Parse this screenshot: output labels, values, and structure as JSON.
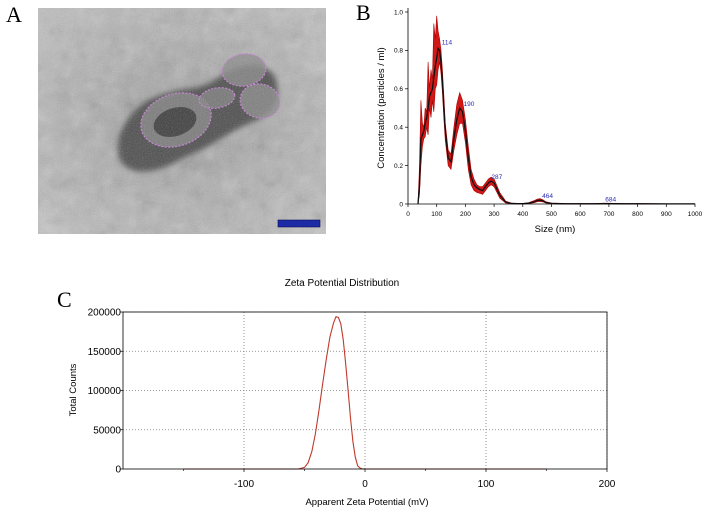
{
  "panels": {
    "a": {
      "label": "A"
    },
    "b": {
      "label": "B"
    },
    "c": {
      "label": "C"
    }
  },
  "chart_data": [
    {
      "type": "line",
      "panel": "B",
      "title": "",
      "xlabel": "Size (nm)",
      "ylabel": "Concentration (particles / ml)",
      "xlim": [
        0,
        1000
      ],
      "ylim": [
        0,
        1.0
      ],
      "x_ticks": [
        0,
        100,
        200,
        300,
        400,
        500,
        600,
        700,
        800,
        900,
        1000
      ],
      "y_ticks": [
        0,
        0.2,
        0.4,
        0.6,
        0.8,
        1.0
      ],
      "y_tick_labels": [
        "0",
        "0.2",
        "0.4",
        "0.6",
        "0.8",
        "1.0"
      ],
      "series": [
        {
          "x": [
            35,
            40,
            45,
            50,
            55,
            60,
            65,
            70,
            75,
            80,
            85,
            90,
            95,
            100,
            105,
            110,
            115,
            120,
            125,
            130,
            140,
            150,
            160,
            170,
            180,
            190,
            200,
            210,
            220,
            230,
            240,
            250,
            260,
            270,
            280,
            290,
            300,
            320,
            340,
            360,
            380,
            400,
            420,
            440,
            450,
            460,
            470,
            480,
            500,
            550,
            600,
            650,
            680,
            700,
            750,
            800,
            900,
            1000
          ],
          "y": [
            0,
            0.1,
            0.34,
            0.36,
            0.38,
            0.42,
            0.45,
            0.5,
            0.56,
            0.58,
            0.6,
            0.66,
            0.72,
            0.76,
            0.81,
            0.8,
            0.74,
            0.64,
            0.5,
            0.38,
            0.24,
            0.22,
            0.34,
            0.44,
            0.5,
            0.48,
            0.38,
            0.24,
            0.14,
            0.1,
            0.085,
            0.075,
            0.07,
            0.09,
            0.11,
            0.12,
            0.11,
            0.045,
            0.01,
            0.003,
            0.002,
            0.002,
            0.004,
            0.012,
            0.018,
            0.02,
            0.016,
            0.008,
            0.003,
            0.001,
            0.001,
            0.001,
            0.002,
            0.002,
            0.001,
            0.001,
            0.0005,
            0.0005
          ]
        }
      ],
      "band_upper": [
        0,
        0.2,
        0.54,
        0.42,
        0.4,
        0.5,
        0.48,
        0.74,
        0.6,
        0.7,
        0.65,
        0.94,
        0.86,
        0.98,
        0.9,
        0.86,
        0.8,
        0.7,
        0.56,
        0.42,
        0.28,
        0.26,
        0.4,
        0.52,
        0.58,
        0.54,
        0.44,
        0.3,
        0.18,
        0.13,
        0.1,
        0.09,
        0.09,
        0.11,
        0.13,
        0.14,
        0.13,
        0.06,
        0.015,
        0.005,
        0.003,
        0.003,
        0.007,
        0.018,
        0.025,
        0.028,
        0.022,
        0.012,
        0.005,
        0.002,
        0.002,
        0.002,
        0.004,
        0.004,
        0.002,
        0.002,
        0.001,
        0.001
      ],
      "band_lower": [
        0,
        0.05,
        0.2,
        0.3,
        0.34,
        0.35,
        0.4,
        0.36,
        0.5,
        0.45,
        0.54,
        0.48,
        0.6,
        0.62,
        0.7,
        0.74,
        0.68,
        0.58,
        0.44,
        0.33,
        0.2,
        0.18,
        0.28,
        0.36,
        0.42,
        0.42,
        0.32,
        0.18,
        0.1,
        0.07,
        0.06,
        0.055,
        0.05,
        0.07,
        0.09,
        0.1,
        0.09,
        0.03,
        0.005,
        0.001,
        0.001,
        0.001,
        0.002,
        0.007,
        0.012,
        0.013,
        0.011,
        0.005,
        0.001,
        0,
        0,
        0,
        0.001,
        0.001,
        0,
        0,
        0,
        0
      ],
      "peak_labels": [
        {
          "x": 114,
          "y": 0.82,
          "text": "114"
        },
        {
          "x": 190,
          "y": 0.5,
          "text": "190"
        },
        {
          "x": 287,
          "y": 0.12,
          "text": "287"
        },
        {
          "x": 464,
          "y": 0.02,
          "text": "464"
        },
        {
          "x": 684,
          "y": 0.002,
          "text": "684"
        }
      ],
      "grid": false,
      "colors": {
        "line": "#111111",
        "band": "#d01818",
        "band_edge": "#b00000",
        "label": "#2a2ab8"
      }
    },
    {
      "type": "line",
      "panel": "C",
      "title": "Zeta Potential Distribution",
      "xlabel": "Apparent Zeta Potential (mV)",
      "ylabel": "Total Counts",
      "xlim": [
        -200,
        200
      ],
      "ylim": [
        0,
        200000
      ],
      "x_ticks": [
        -100,
        0,
        100,
        200
      ],
      "y_ticks": [
        0,
        50000,
        100000,
        150000,
        200000
      ],
      "series": [
        {
          "x": [
            -150,
            -55,
            -50,
            -47,
            -44,
            -41,
            -38,
            -35,
            -32,
            -29,
            -26,
            -24,
            -22,
            -20,
            -18,
            -16,
            -14,
            -12,
            -10,
            -8,
            -6,
            -4,
            -2,
            150
          ],
          "y": [
            0,
            0,
            2000,
            8000,
            22000,
            45000,
            75000,
            108000,
            140000,
            168000,
            186000,
            194000,
            193000,
            185000,
            165000,
            135000,
            100000,
            65000,
            35000,
            15000,
            4000,
            1000,
            0,
            0
          ]
        }
      ],
      "grid": true,
      "colors": {
        "line": "#c0392b",
        "grid": "#7a7a7a"
      }
    }
  ]
}
